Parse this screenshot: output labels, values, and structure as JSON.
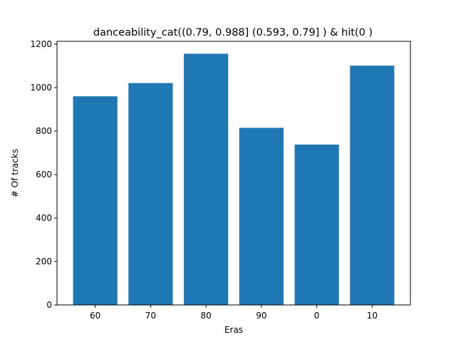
{
  "chart_data": {
    "type": "bar",
    "title": "danceability_cat((0.79, 0.988] (0.593, 0.79] ) & hit(0 )",
    "xlabel": "Eras",
    "ylabel": "# Of tracks",
    "categories": [
      "60",
      "70",
      "80",
      "90",
      "0",
      "10"
    ],
    "values": [
      960,
      1021,
      1156,
      815,
      738,
      1101
    ],
    "ylim": [
      0,
      1213
    ],
    "yticks": [
      0,
      200,
      400,
      600,
      800,
      1000,
      1200
    ],
    "grid": false,
    "legend": "none",
    "bar_color": "#1f77b4"
  }
}
